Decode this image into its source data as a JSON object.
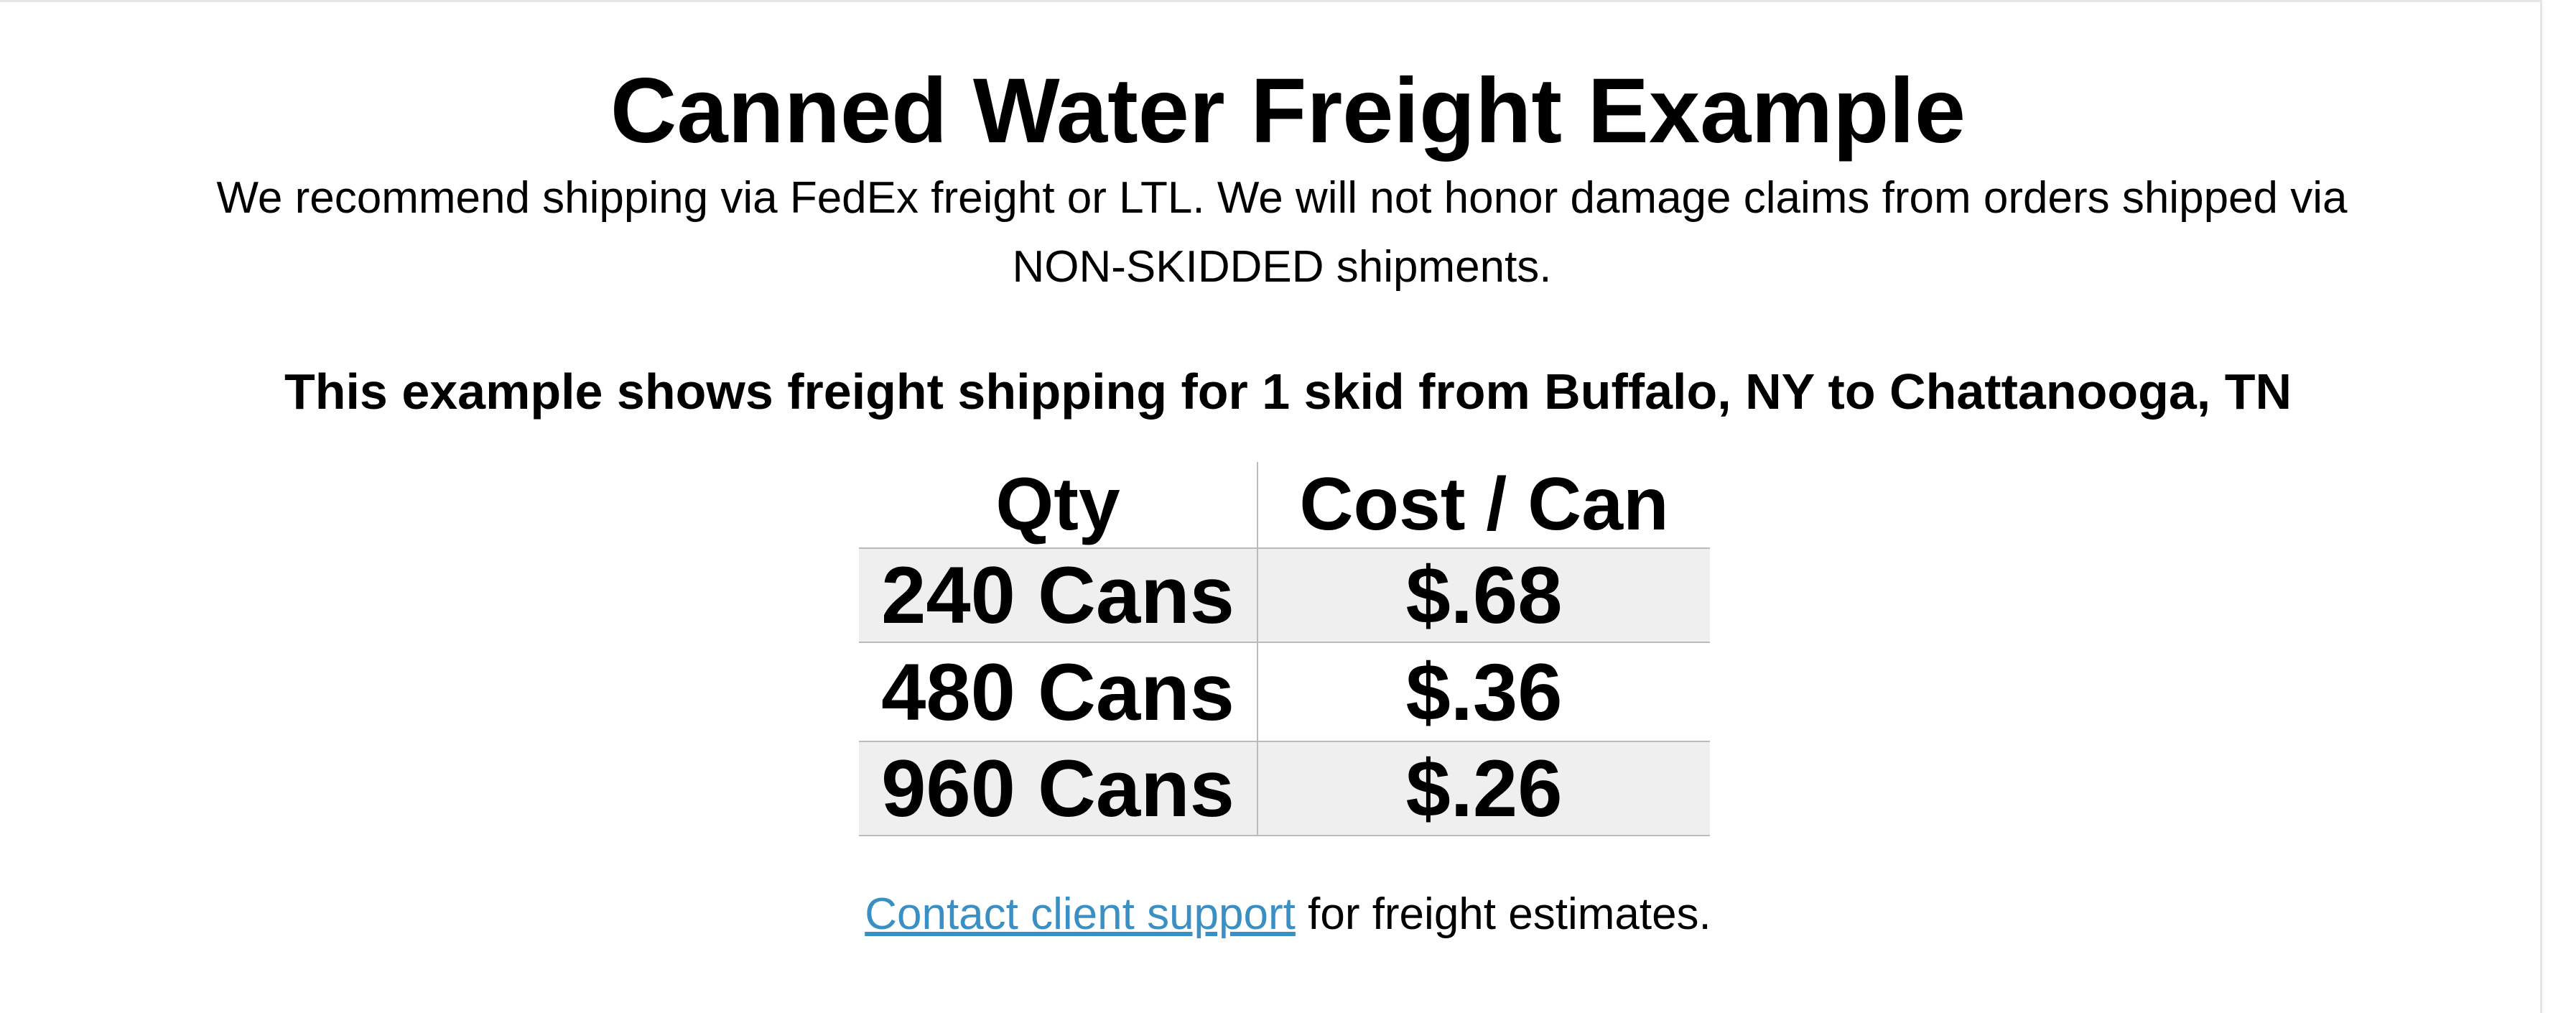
{
  "header": {
    "title": "Canned Water Freight Example",
    "intro": "We recommend shipping via FedEx freight or LTL. We will not honor damage claims from orders shipped via NON-SKIDDED shipments.",
    "subheading": "This example shows freight shipping for 1 skid from Buffalo, NY to Chattanooga, TN"
  },
  "table": {
    "columns": [
      "Qty",
      "Cost / Can"
    ],
    "rows": [
      [
        "240 Cans",
        "$.68"
      ],
      [
        "480 Cans",
        "$.36"
      ],
      [
        "960 Cans",
        "$.26"
      ]
    ]
  },
  "footer": {
    "link": "Contact client support",
    "text": "for freight estimates."
  }
}
